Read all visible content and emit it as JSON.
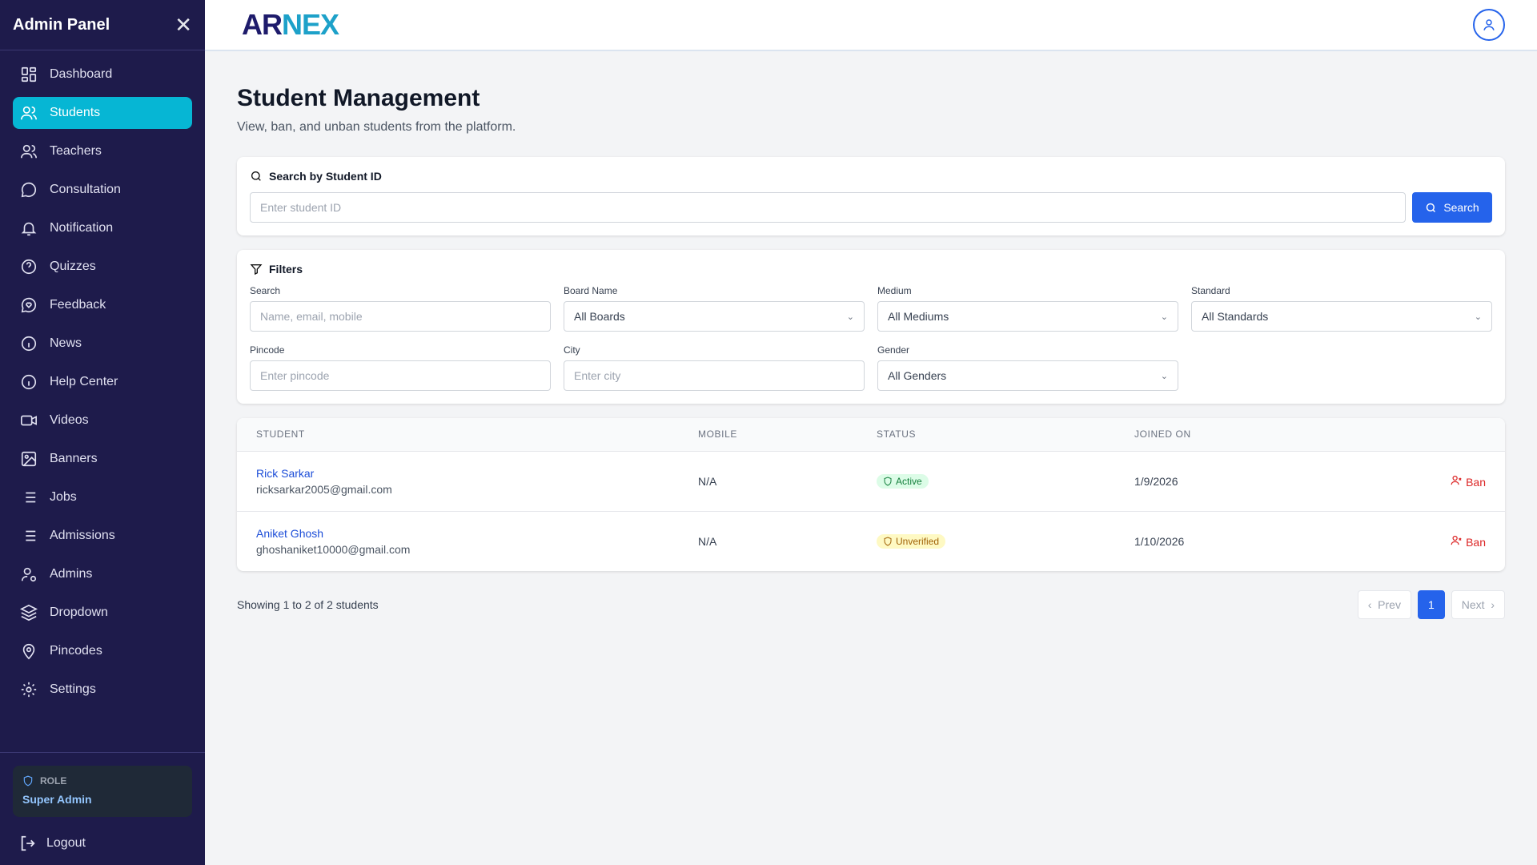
{
  "sidebar": {
    "title": "Admin Panel",
    "items": [
      {
        "label": "Dashboard",
        "icon": "dashboard-icon"
      },
      {
        "label": "Students",
        "icon": "users-icon",
        "active": true
      },
      {
        "label": "Teachers",
        "icon": "users-icon"
      },
      {
        "label": "Consultation",
        "icon": "chat-icon"
      },
      {
        "label": "Notification",
        "icon": "bell-icon"
      },
      {
        "label": "Quizzes",
        "icon": "question-icon"
      },
      {
        "label": "Feedback",
        "icon": "heart-chat-icon"
      },
      {
        "label": "News",
        "icon": "info-icon"
      },
      {
        "label": "Help Center",
        "icon": "info-icon"
      },
      {
        "label": "Videos",
        "icon": "video-icon"
      },
      {
        "label": "Banners",
        "icon": "image-icon"
      },
      {
        "label": "Jobs",
        "icon": "list-icon"
      },
      {
        "label": "Admissions",
        "icon": "list-icon"
      },
      {
        "label": "Admins",
        "icon": "user-gear-icon"
      },
      {
        "label": "Dropdown",
        "icon": "layers-icon"
      },
      {
        "label": "Pincodes",
        "icon": "map-pin-icon"
      },
      {
        "label": "Settings",
        "icon": "gear-icon"
      }
    ],
    "role_label": "ROLE",
    "role_value": "Super Admin",
    "logout": "Logout"
  },
  "header": {
    "logo": "ARNEX",
    "logo_a": "AR",
    "logo_b": "NEX"
  },
  "page": {
    "title": "Student Management",
    "subtitle": "View, ban, and unban students from the platform."
  },
  "search": {
    "title": "Search by Student ID",
    "placeholder": "Enter student ID",
    "button": "Search"
  },
  "filters": {
    "title": "Filters",
    "fields": [
      {
        "label": "Search",
        "value": "Name, email, mobile",
        "type": "input"
      },
      {
        "label": "Board Name",
        "value": "All Boards",
        "type": "select"
      },
      {
        "label": "Medium",
        "value": "All Mediums",
        "type": "select"
      },
      {
        "label": "Standard",
        "value": "All Standards",
        "type": "select"
      },
      {
        "label": "Pincode",
        "value": "Enter pincode",
        "type": "input"
      },
      {
        "label": "City",
        "value": "Enter city",
        "type": "input"
      },
      {
        "label": "Gender",
        "value": "All Genders",
        "type": "select"
      }
    ]
  },
  "table": {
    "columns": [
      "STUDENT",
      "MOBILE",
      "STATUS",
      "JOINED ON"
    ],
    "rows": [
      {
        "name": "Rick Sarkar",
        "email": "ricksarkar2005@gmail.com",
        "mobile": "N/A",
        "status": "Active",
        "joined": "1/9/2026",
        "action": "Ban"
      },
      {
        "name": "Aniket Ghosh",
        "email": "ghoshaniket10000@gmail.com",
        "mobile": "N/A",
        "status": "Unverified",
        "joined": "1/10/2026",
        "action": "Ban"
      }
    ]
  },
  "pagination": {
    "summary": "Showing 1 to 2 of 2 students",
    "prev": "Prev",
    "current": "1",
    "next": "Next"
  },
  "colors": {
    "sidebar": "#1e1b4b",
    "active": "#06b6d4",
    "primary": "#2563eb",
    "danger": "#dc2626"
  }
}
